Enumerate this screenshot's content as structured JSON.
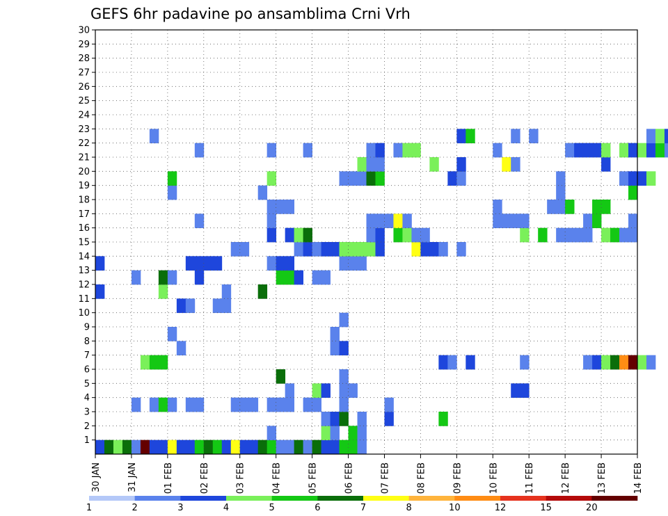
{
  "chart_data": {
    "type": "heatmap",
    "title": "GEFS 6hr padavine po ansamblima Crni Vrh",
    "xlabel": "",
    "ylabel": "",
    "x_tick_labels": [
      "30 JAN",
      "31 JAN",
      "01 FEB",
      "02 FEB",
      "03 FEB",
      "04 FEB",
      "05 FEB",
      "06 FEB",
      "07 FEB",
      "08 FEB",
      "09 FEB",
      "10 FEB",
      "11 FEB",
      "12 FEB",
      "13 FEB",
      "14 FEB"
    ],
    "xlim": [
      0,
      15
    ],
    "y_tick_labels": [
      "1",
      "2",
      "3",
      "4",
      "5",
      "6",
      "7",
      "8",
      "9",
      "10",
      "11",
      "12",
      "13",
      "14",
      "15",
      "16",
      "17",
      "18",
      "19",
      "20",
      "21",
      "22",
      "23",
      "24",
      "25",
      "26",
      "27",
      "28",
      "29",
      "30"
    ],
    "ylim": [
      0,
      30
    ],
    "grid": true,
    "legend_position": "bottom",
    "colorbar": {
      "labels": [
        "1",
        "2",
        "3",
        "4",
        "5",
        "6",
        "7",
        "8",
        "10",
        "12",
        "15",
        "20"
      ],
      "colors": [
        "#b4c8f8",
        "#5a82ec",
        "#1e46dc",
        "#7af05a",
        "#14c814",
        "#0a6e0a",
        "#ffff14",
        "#ffb43c",
        "#ff8c14",
        "#e6321e",
        "#b40a0a",
        "#640000"
      ]
    },
    "cells": [
      [
        0,
        0,
        2
      ],
      [
        0,
        1,
        5
      ],
      [
        0,
        2,
        3
      ],
      [
        0,
        3,
        5
      ],
      [
        0,
        4,
        1
      ],
      [
        0,
        5,
        11
      ],
      [
        0,
        6,
        2
      ],
      [
        0,
        7,
        2
      ],
      [
        0,
        8,
        6
      ],
      [
        0,
        9,
        2
      ],
      [
        0,
        10,
        2
      ],
      [
        0,
        11,
        4
      ],
      [
        0,
        12,
        5
      ],
      [
        0,
        13,
        4
      ],
      [
        0,
        14,
        2
      ],
      [
        0,
        15,
        6
      ],
      [
        0,
        16,
        2
      ],
      [
        0,
        17,
        2
      ],
      [
        0,
        18,
        5
      ],
      [
        0,
        19,
        4
      ],
      [
        0,
        20,
        1
      ],
      [
        0,
        21,
        1
      ],
      [
        0,
        22,
        5
      ],
      [
        0,
        23,
        1
      ],
      [
        0,
        24,
        5
      ],
      [
        0,
        25,
        2
      ],
      [
        0,
        26,
        2
      ],
      [
        0,
        27,
        4
      ],
      [
        0,
        28,
        4
      ],
      [
        0,
        29,
        1
      ],
      [
        1,
        19,
        1
      ],
      [
        1,
        25,
        3
      ],
      [
        1,
        26,
        1
      ],
      [
        1,
        28,
        4
      ],
      [
        1,
        29,
        1
      ],
      [
        2,
        25,
        1
      ],
      [
        2,
        26,
        2
      ],
      [
        2,
        27,
        5
      ],
      [
        2,
        29,
        1
      ],
      [
        2,
        32,
        2
      ],
      [
        2,
        38,
        4
      ],
      [
        3,
        4,
        1
      ],
      [
        3,
        6,
        1
      ],
      [
        3,
        7,
        4
      ],
      [
        3,
        8,
        1
      ],
      [
        3,
        10,
        1
      ],
      [
        3,
        11,
        1
      ],
      [
        3,
        15,
        1
      ],
      [
        3,
        16,
        1
      ],
      [
        3,
        17,
        1
      ],
      [
        3,
        19,
        1
      ],
      [
        3,
        20,
        1
      ],
      [
        3,
        21,
        1
      ],
      [
        3,
        23,
        1
      ],
      [
        3,
        24,
        1
      ],
      [
        3,
        27,
        1
      ],
      [
        3,
        32,
        1
      ],
      [
        4,
        21,
        1
      ],
      [
        4,
        24,
        3
      ],
      [
        4,
        25,
        2
      ],
      [
        4,
        27,
        1
      ],
      [
        4,
        28,
        1
      ],
      [
        4,
        46,
        2
      ],
      [
        4,
        47,
        2
      ],
      [
        5,
        20,
        5
      ],
      [
        5,
        27,
        1
      ],
      [
        6,
        5,
        3
      ],
      [
        6,
        6,
        4
      ],
      [
        6,
        7,
        4
      ],
      [
        6,
        38,
        2
      ],
      [
        6,
        39,
        1
      ],
      [
        6,
        41,
        2
      ],
      [
        6,
        47,
        1
      ],
      [
        6,
        54,
        1
      ],
      [
        6,
        55,
        2
      ],
      [
        6,
        56,
        3
      ],
      [
        6,
        57,
        5
      ],
      [
        6,
        58,
        8
      ],
      [
        6,
        59,
        11
      ],
      [
        6,
        60,
        3
      ],
      [
        6,
        61,
        1
      ],
      [
        7,
        9,
        1
      ],
      [
        7,
        26,
        1
      ],
      [
        7,
        27,
        2
      ],
      [
        8,
        8,
        1
      ],
      [
        8,
        26,
        1
      ],
      [
        9,
        27,
        1
      ],
      [
        10,
        9,
        2
      ],
      [
        10,
        10,
        1
      ],
      [
        10,
        13,
        1
      ],
      [
        10,
        14,
        1
      ],
      [
        11,
        0,
        2
      ],
      [
        11,
        7,
        3
      ],
      [
        11,
        14,
        1
      ],
      [
        11,
        18,
        5
      ],
      [
        12,
        4,
        1
      ],
      [
        12,
        7,
        5
      ],
      [
        12,
        8,
        1
      ],
      [
        12,
        11,
        2
      ],
      [
        12,
        20,
        4
      ],
      [
        12,
        21,
        4
      ],
      [
        12,
        22,
        2
      ],
      [
        12,
        24,
        1
      ],
      [
        12,
        25,
        1
      ],
      [
        13,
        0,
        2
      ],
      [
        13,
        10,
        2
      ],
      [
        13,
        11,
        2
      ],
      [
        13,
        12,
        2
      ],
      [
        13,
        13,
        2
      ],
      [
        13,
        19,
        1
      ],
      [
        13,
        20,
        2
      ],
      [
        13,
        21,
        2
      ],
      [
        13,
        27,
        1
      ],
      [
        13,
        28,
        1
      ],
      [
        13,
        29,
        1
      ],
      [
        14,
        15,
        1
      ],
      [
        14,
        16,
        1
      ],
      [
        14,
        22,
        1
      ],
      [
        14,
        23,
        2
      ],
      [
        14,
        24,
        1
      ],
      [
        14,
        25,
        2
      ],
      [
        14,
        26,
        2
      ],
      [
        14,
        27,
        3
      ],
      [
        14,
        28,
        3
      ],
      [
        14,
        29,
        3
      ],
      [
        14,
        30,
        3
      ],
      [
        14,
        31,
        2
      ],
      [
        14,
        35,
        6
      ],
      [
        14,
        36,
        2
      ],
      [
        14,
        37,
        2
      ],
      [
        14,
        38,
        1
      ],
      [
        14,
        40,
        1
      ],
      [
        15,
        19,
        2
      ],
      [
        15,
        21,
        2
      ],
      [
        15,
        22,
        3
      ],
      [
        15,
        23,
        5
      ],
      [
        15,
        30,
        1
      ],
      [
        15,
        31,
        2
      ],
      [
        15,
        33,
        4
      ],
      [
        15,
        34,
        3
      ],
      [
        15,
        35,
        1
      ],
      [
        15,
        36,
        1
      ],
      [
        15,
        47,
        3
      ],
      [
        15,
        49,
        4
      ],
      [
        15,
        51,
        1
      ],
      [
        15,
        52,
        1
      ],
      [
        15,
        53,
        1
      ],
      [
        15,
        54,
        1
      ],
      [
        15,
        56,
        3
      ],
      [
        15,
        57,
        4
      ],
      [
        15,
        58,
        1
      ],
      [
        15,
        59,
        1
      ],
      [
        16,
        11,
        1
      ],
      [
        16,
        19,
        1
      ],
      [
        16,
        30,
        1
      ],
      [
        16,
        31,
        1
      ],
      [
        16,
        32,
        1
      ],
      [
        16,
        33,
        6
      ],
      [
        16,
        34,
        1
      ],
      [
        16,
        44,
        1
      ],
      [
        16,
        45,
        1
      ],
      [
        16,
        46,
        1
      ],
      [
        16,
        47,
        1
      ],
      [
        16,
        54,
        1
      ],
      [
        16,
        55,
        4
      ],
      [
        16,
        59,
        1
      ],
      [
        17,
        19,
        1
      ],
      [
        17,
        20,
        1
      ],
      [
        17,
        21,
        1
      ],
      [
        17,
        44,
        1
      ],
      [
        17,
        50,
        1
      ],
      [
        17,
        51,
        1
      ],
      [
        17,
        52,
        4
      ],
      [
        17,
        55,
        4
      ],
      [
        17,
        56,
        4
      ],
      [
        18,
        8,
        1
      ],
      [
        18,
        18,
        1
      ],
      [
        18,
        51,
        1
      ],
      [
        18,
        59,
        4
      ],
      [
        19,
        8,
        4
      ],
      [
        19,
        19,
        3
      ],
      [
        19,
        27,
        1
      ],
      [
        19,
        28,
        1
      ],
      [
        19,
        29,
        1
      ],
      [
        19,
        30,
        5
      ],
      [
        19,
        31,
        4
      ],
      [
        19,
        39,
        2
      ],
      [
        19,
        40,
        1
      ],
      [
        19,
        51,
        1
      ],
      [
        19,
        58,
        1
      ],
      [
        19,
        59,
        2
      ],
      [
        19,
        60,
        2
      ],
      [
        19,
        61,
        3
      ],
      [
        20,
        29,
        3
      ],
      [
        20,
        30,
        1
      ],
      [
        20,
        31,
        1
      ],
      [
        20,
        37,
        3
      ],
      [
        20,
        40,
        2
      ],
      [
        20,
        45,
        6
      ],
      [
        20,
        46,
        1
      ],
      [
        20,
        56,
        2
      ],
      [
        21,
        11,
        1
      ],
      [
        21,
        19,
        1
      ],
      [
        21,
        23,
        1
      ],
      [
        21,
        30,
        1
      ],
      [
        21,
        31,
        2
      ],
      [
        21,
        33,
        1
      ],
      [
        21,
        34,
        3
      ],
      [
        21,
        35,
        3
      ],
      [
        21,
        44,
        1
      ],
      [
        21,
        52,
        1
      ],
      [
        21,
        53,
        2
      ],
      [
        21,
        54,
        2
      ],
      [
        21,
        55,
        2
      ],
      [
        21,
        56,
        3
      ],
      [
        21,
        58,
        3
      ],
      [
        21,
        59,
        2
      ],
      [
        21,
        60,
        3
      ],
      [
        21,
        61,
        2
      ],
      [
        21,
        62,
        4
      ],
      [
        21,
        63,
        1
      ],
      [
        22,
        6,
        1
      ],
      [
        22,
        40,
        2
      ],
      [
        22,
        41,
        4
      ],
      [
        22,
        46,
        1
      ],
      [
        22,
        48,
        1
      ],
      [
        22,
        61,
        1
      ],
      [
        22,
        62,
        3
      ],
      [
        22,
        63,
        2
      ]
    ]
  }
}
